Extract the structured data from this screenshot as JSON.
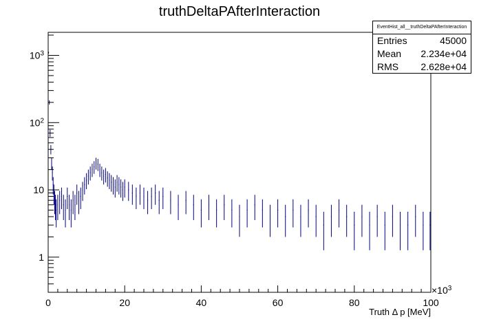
{
  "chart_data": {
    "type": "bar",
    "title": "truthDeltaPAfterInteraction",
    "xlabel": "Truth Δ p [MeV]",
    "ylabel": "",
    "x_exponent_label": "×10",
    "x_exponent_power": "3",
    "xlim": [
      0,
      100
    ],
    "ylim": [
      0.3,
      2200
    ],
    "y_scale": "log",
    "grid": false,
    "legend": "none",
    "xticks": [
      {
        "value": 0,
        "label": "0"
      },
      {
        "value": 20,
        "label": "20"
      },
      {
        "value": 40,
        "label": "40"
      },
      {
        "value": 60,
        "label": "60"
      },
      {
        "value": 80,
        "label": "80"
      },
      {
        "value": 100,
        "label": "100"
      }
    ],
    "yticks": [
      {
        "value": 1,
        "label": "1"
      },
      {
        "value": 10,
        "label": "10"
      },
      {
        "value": 100,
        "label": "10",
        "sup": "2"
      },
      {
        "value": 1000,
        "label": "10",
        "sup": "3"
      }
    ],
    "series_color": "#000080",
    "bin_width": 0.2,
    "series": [
      {
        "x": [
          0.1,
          0.3,
          0.5,
          0.7,
          0.9,
          1.1,
          1.3,
          1.5,
          1.7,
          1.9,
          2.1,
          2.5,
          3.0,
          3.5,
          4.0,
          4.5,
          5.0,
          5.5,
          6.0,
          6.5,
          7.0,
          7.5,
          8.0,
          8.5,
          9.0,
          9.5,
          10.0,
          10.5,
          11.0,
          11.5,
          12.0,
          12.5,
          13.0,
          13.5,
          14.0,
          14.5,
          15.0,
          15.5,
          16.0,
          16.5,
          17.0,
          17.5,
          18.0,
          18.5,
          19.0,
          19.5,
          20.0,
          21.0,
          22.0,
          23.0,
          24.0,
          25.0,
          26.0,
          27.0,
          28.0,
          29.0,
          30.0,
          32.0,
          34.0,
          36.0,
          38.0,
          40.0,
          42.0,
          44.0,
          46.0,
          48.0,
          50.0,
          52.0,
          54.0,
          56.0,
          58.0,
          60.0,
          62.0,
          64.0,
          66.0,
          68.0,
          70.0,
          72.0,
          74.0,
          76.0,
          78.0,
          80.0,
          82.0,
          84.0,
          86.0,
          88.0,
          90.0,
          92.0,
          94.0,
          96.0,
          98.0,
          99.8
        ],
        "y": [
          1100,
          200,
          70,
          40,
          25,
          18,
          12,
          9,
          7,
          6,
          5,
          6,
          7,
          8,
          6,
          5,
          8,
          6,
          5,
          7,
          6,
          9,
          7,
          8,
          10,
          12,
          14,
          16,
          18,
          20,
          22,
          25,
          24,
          20,
          18,
          16,
          17,
          15,
          14,
          13,
          12,
          11,
          13,
          12,
          11,
          10,
          11,
          10,
          9,
          8,
          9,
          8,
          7,
          8,
          9,
          7,
          8,
          7,
          6,
          7,
          6,
          5,
          6,
          5,
          6,
          5,
          4,
          5,
          6,
          5,
          4,
          5,
          4,
          5,
          4,
          5,
          4,
          3,
          4,
          5,
          4,
          3,
          4,
          3,
          4,
          3,
          4,
          3,
          3,
          4,
          3,
          3
        ]
      }
    ]
  },
  "stats": {
    "header": "EventHist_all__truthDeltaPAfterInteraction",
    "rows": [
      {
        "label": "Entries",
        "value": "45000"
      },
      {
        "label": "Mean",
        "value": "2.234e+04"
      },
      {
        "label": "RMS",
        "value": "2.628e+04"
      }
    ]
  }
}
